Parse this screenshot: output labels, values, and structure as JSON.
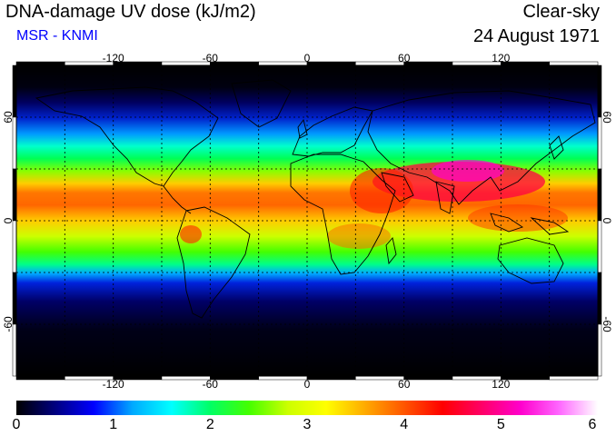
{
  "header": {
    "title": "DNA-damage UV dose (kJ/m2)",
    "credit": "MSR - KNMI",
    "sky_condition": "Clear-sky",
    "date": "24 August 1971"
  },
  "map": {
    "projection": "equirectangular",
    "lon_range": [
      -180,
      180
    ],
    "lat_range": [
      -90,
      90
    ],
    "graticule": "dashed, every 30 degrees",
    "lon_ticks": [
      "-120",
      "-60",
      "0",
      "60",
      "120"
    ],
    "lat_ticks_left": [
      "60",
      "0",
      "-60"
    ],
    "lat_ticks_right": [
      "60",
      "0",
      "-60"
    ],
    "coastlines_color": "#000000"
  },
  "colorbar": {
    "min": 0,
    "max": 6,
    "tick_labels": [
      "0",
      "1",
      "2",
      "3",
      "4",
      "5",
      "6"
    ],
    "colors": [
      "#000000",
      "#000080",
      "#0000ff",
      "#00aaff",
      "#00ffff",
      "#00ff66",
      "#44ff00",
      "#ccff00",
      "#ffff00",
      "#ffaa00",
      "#ff5500",
      "#ff0000",
      "#ff0066",
      "#ff00cc",
      "#ff66ff",
      "#ffffff"
    ]
  }
}
